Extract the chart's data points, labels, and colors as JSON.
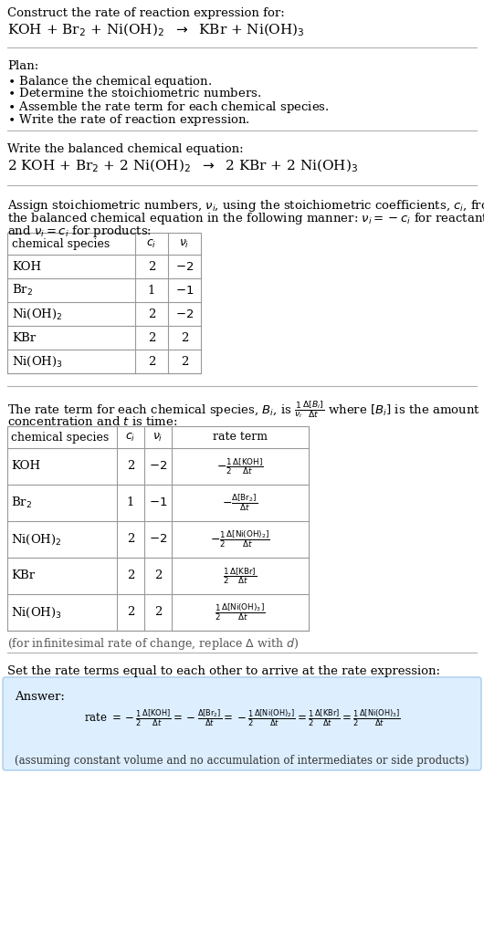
{
  "bg_color": "#ffffff",
  "text_color": "#000000",
  "line_color": "#cccccc",
  "answer_box_bg": "#ddeeff",
  "answer_box_edge": "#aaccee",
  "font_family": "DejaVu Serif",
  "sections": {
    "s1_title": "Construct the rate of reaction expression for:",
    "s1_rxn": "KOH + Br$_2$ + Ni(OH)$_2$  $\\rightarrow$  KBr + Ni(OH)$_3$",
    "s2_header": "Plan:",
    "s2_items": [
      "\\bullet  Balance the chemical equation.",
      "\\bullet  Determine the stoichiometric numbers.",
      "\\bullet  Assemble the rate term for each chemical species.",
      "\\bullet  Write the rate of reaction expression."
    ],
    "s3_header": "Write the balanced chemical equation:",
    "s3_rxn": "2 KOH + Br$_2$ + 2 Ni(OH)$_2$  $\\rightarrow$  2 KBr + 2 Ni(OH)$_3$",
    "s4_line1": "Assign stoichiometric numbers, $\\nu_i$, using the stoichiometric coefficients, $c_i$, from",
    "s4_line2": "the balanced chemical equation in the following manner: $\\nu_i = -c_i$ for reactants",
    "s4_line3": "and $\\nu_i = c_i$ for products:",
    "s5_line1_pre": "The rate term for each chemical species, $B_i$, is ",
    "s5_line1_frac": "$\\frac{1}{\\nu_i}\\frac{\\Delta[B_i]}{\\Delta t}$",
    "s5_line1_post": " where $[B_i]$ is the amount",
    "s5_line2": "concentration and $t$ is time:",
    "s6_header": "Set the rate terms equal to each other to arrive at the rate expression:",
    "s6_answer_label": "Answer:",
    "s6_note": "(assuming constant volume and no accumulation of intermediates or side products)",
    "infinitesimal": "(for infinitesimal rate of change, replace $\\Delta$ with $d$)"
  },
  "table1": {
    "col_header": [
      "chemical species",
      "$c_i$",
      "$\\nu_i$"
    ],
    "rows": [
      [
        "KOH",
        "2",
        "$-2$"
      ],
      [
        "Br$_2$",
        "1",
        "$-1$"
      ],
      [
        "Ni(OH)$_2$",
        "2",
        "$-2$"
      ],
      [
        "KBr",
        "2",
        "2"
      ],
      [
        "Ni(OH)$_3$",
        "2",
        "2"
      ]
    ]
  },
  "table2": {
    "col_header": [
      "chemical species",
      "$c_i$",
      "$\\nu_i$",
      "rate term"
    ],
    "rows": [
      [
        "KOH",
        "2",
        "$-2$",
        "$-\\frac{1}{2}\\frac{\\Delta[\\mathrm{KOH}]}{\\Delta t}$"
      ],
      [
        "Br$_2$",
        "1",
        "$-1$",
        "$-\\frac{\\Delta[\\mathrm{Br_2}]}{\\Delta t}$"
      ],
      [
        "Ni(OH)$_2$",
        "2",
        "$-2$",
        "$-\\frac{1}{2}\\frac{\\Delta[\\mathrm{Ni(OH)_2}]}{\\Delta t}$"
      ],
      [
        "KBr",
        "2",
        "2",
        "$\\frac{1}{2}\\frac{\\Delta[\\mathrm{KBr}]}{\\Delta t}$"
      ],
      [
        "Ni(OH)$_3$",
        "2",
        "2",
        "$\\frac{1}{2}\\frac{\\Delta[\\mathrm{Ni(OH)_3}]}{\\Delta t}$"
      ]
    ]
  }
}
